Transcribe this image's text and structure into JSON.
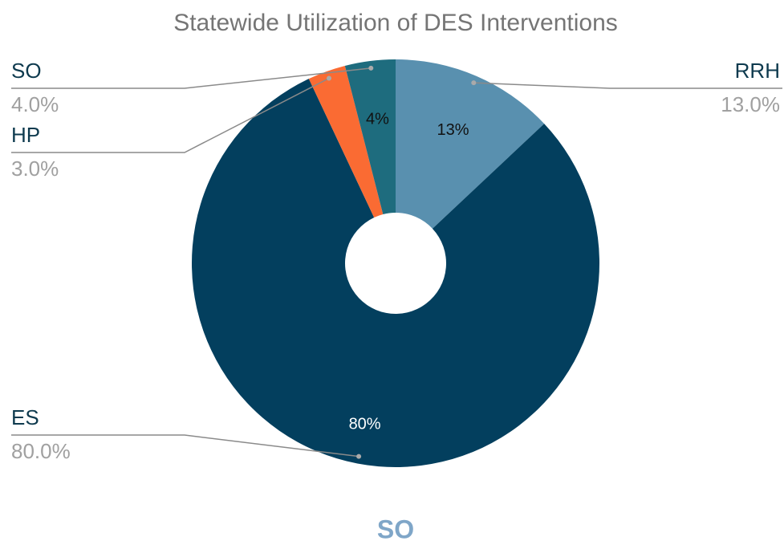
{
  "chart_data": {
    "type": "pie",
    "title": "Statewide Utilization of DES Interventions",
    "categories": [
      "RRH",
      "ES",
      "HP",
      "SO"
    ],
    "values": [
      13,
      80,
      3,
      4
    ],
    "value_labels": [
      "13%",
      "80%",
      null,
      "4%"
    ],
    "outer_labels": [
      "13.0%",
      "80.0%",
      "3.0%",
      "4.0%"
    ],
    "colors": [
      "#5990af",
      "#033f5e",
      "#fa6b33",
      "#1e6c7e"
    ],
    "caption": "SO"
  }
}
